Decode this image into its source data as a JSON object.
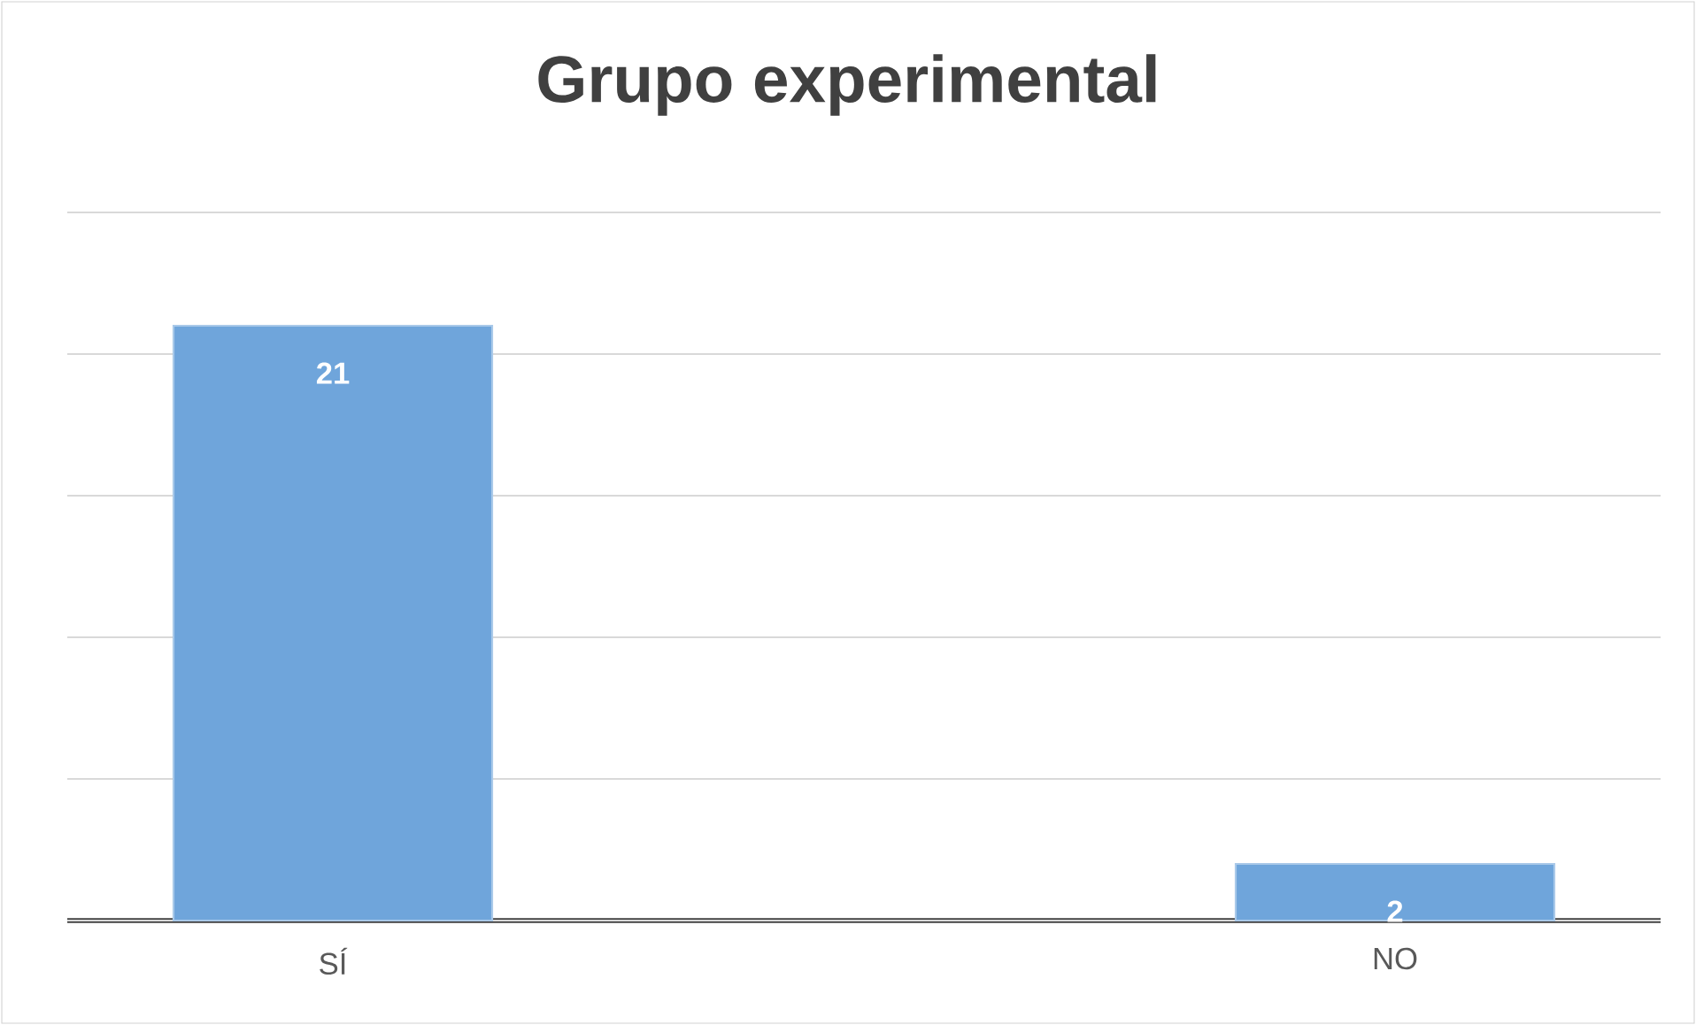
{
  "chart_data": {
    "type": "bar",
    "title": "Grupo experimental",
    "categories": [
      "SÍ",
      "NO"
    ],
    "values": [
      21,
      2
    ],
    "color": "#6fa5db",
    "ylim": [
      0,
      25
    ],
    "yticks": [
      {
        "value": 0,
        "label": null
      },
      {
        "value": 5,
        "label": null
      },
      {
        "value": 10,
        "label": null
      },
      {
        "value": 15,
        "label": null
      },
      {
        "value": 20,
        "label": null
      },
      {
        "value": 25,
        "label": null
      }
    ],
    "tick_labels": "x",
    "grid": "y",
    "data_labels": true
  }
}
